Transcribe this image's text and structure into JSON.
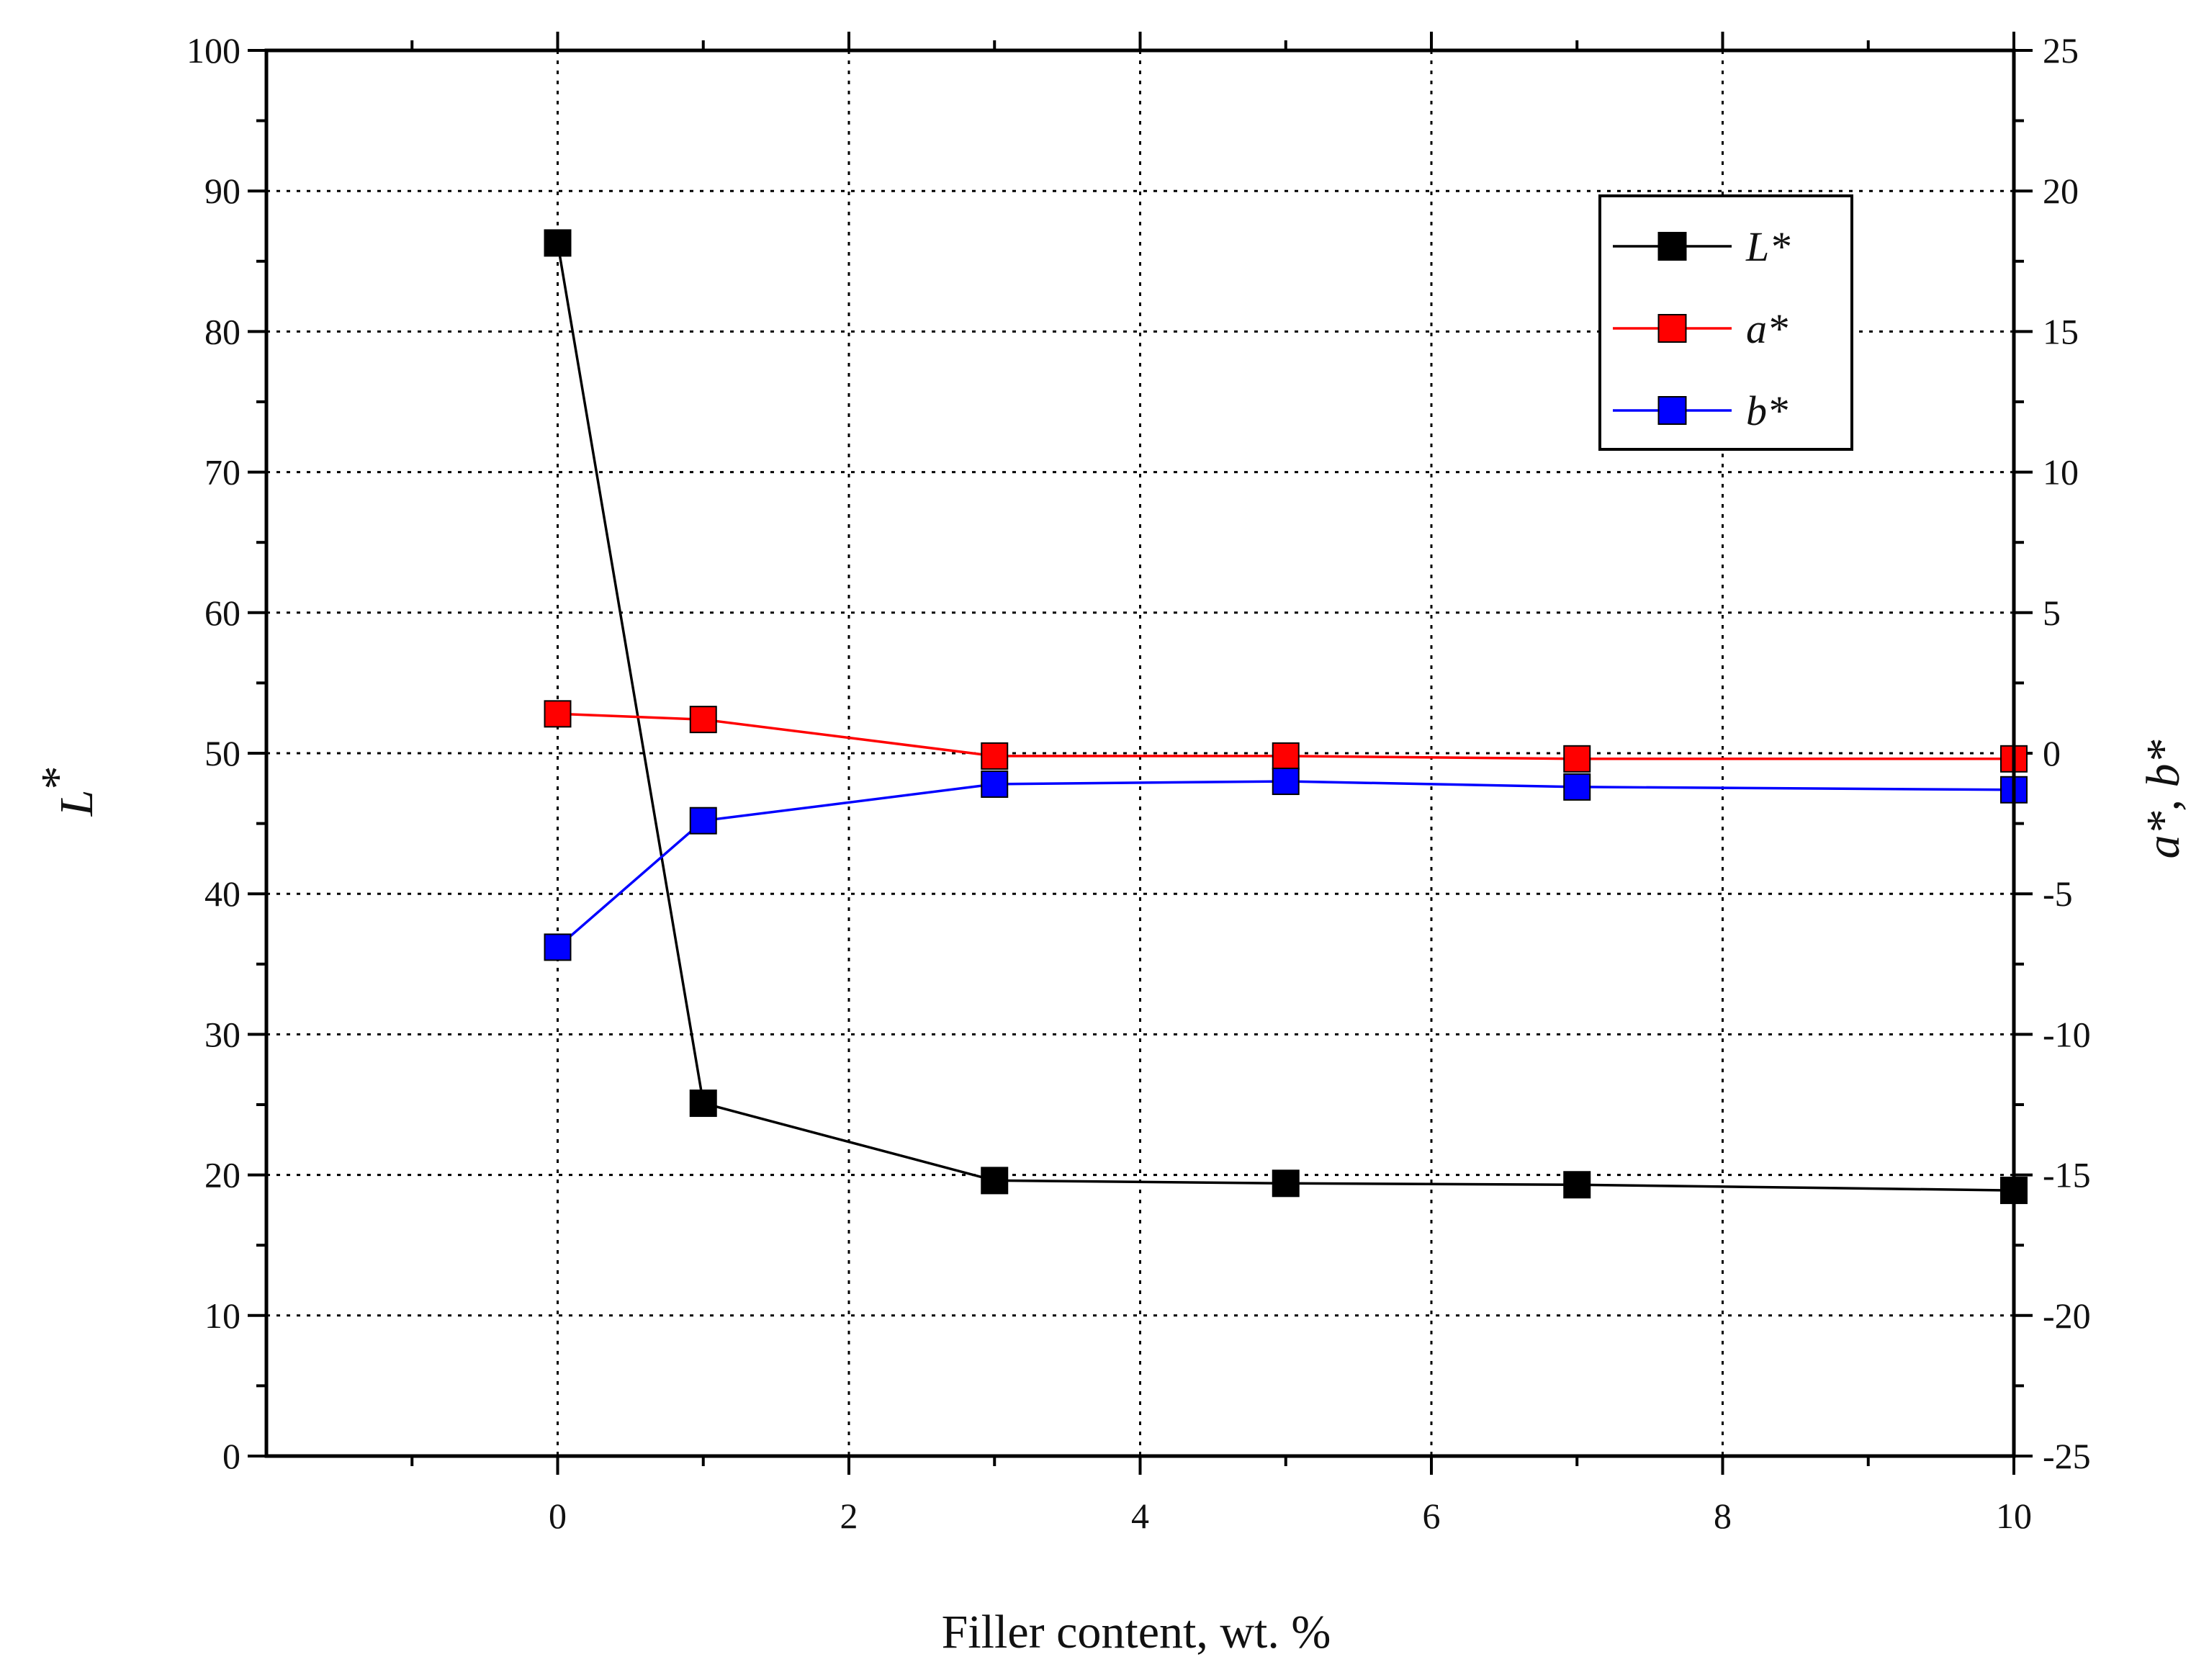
{
  "chart_data": {
    "type": "line",
    "xlabel": "Filler content, wt. %",
    "ylabel_left": "L*",
    "ylabel_left_main": "L",
    "ylabel_left_sup": "*",
    "ylabel_right": "a*, b*",
    "ylabel_right_color": "#e8141c",
    "xlim": [
      -2,
      10
    ],
    "ylim_left": [
      0,
      100
    ],
    "ylim_right": [
      -25,
      25
    ],
    "x_ticks": [
      0,
      2,
      4,
      6,
      8,
      10
    ],
    "y_left_ticks": [
      0,
      10,
      20,
      30,
      40,
      50,
      60,
      70,
      80,
      90,
      100
    ],
    "y_right_ticks": [
      -25,
      -20,
      -15,
      -10,
      -5,
      0,
      5,
      10,
      15,
      20,
      25
    ],
    "grid": true,
    "legend_position": "top-right",
    "x": [
      0,
      1,
      3,
      5,
      7,
      10
    ],
    "series": [
      {
        "name": "L*",
        "axis": "left",
        "color": "#000000",
        "values": [
          86.3,
          25.1,
          19.6,
          19.4,
          19.3,
          18.9
        ]
      },
      {
        "name": "a*",
        "axis": "right",
        "color": "#ff0000",
        "values": [
          1.4,
          1.2,
          -0.1,
          -0.1,
          -0.2,
          -0.2
        ]
      },
      {
        "name": "b*",
        "axis": "right",
        "color": "#0000ff",
        "values": [
          -6.9,
          -2.4,
          -1.1,
          -1.0,
          -1.2,
          -1.3
        ]
      }
    ]
  }
}
